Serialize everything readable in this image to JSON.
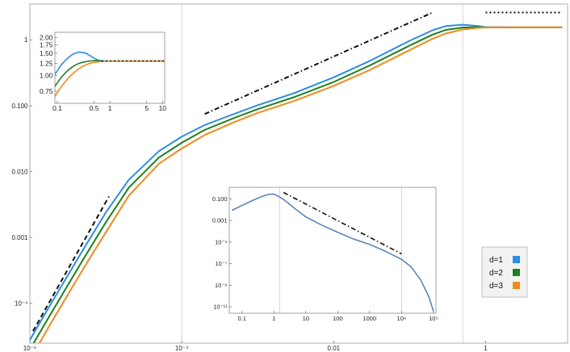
{
  "chart_data": [
    {
      "id": "main",
      "type": "line",
      "title": "",
      "xlabel": "",
      "ylabel": "",
      "x_scale": "log",
      "y_scale": "log",
      "xlim": [
        1e-06,
        12
      ],
      "ylim": [
        2.5e-05,
        3.5
      ],
      "x_ticks": [
        {
          "value": 1e-06,
          "label": "10⁻⁶"
        },
        {
          "value": 0.0001,
          "label": "10⁻⁴"
        },
        {
          "value": 0.01,
          "label": "0.01"
        },
        {
          "value": 1,
          "label": "1"
        }
      ],
      "y_ticks": [
        {
          "value": 0.0001,
          "label": "10⁻⁴"
        },
        {
          "value": 0.001,
          "label": "0.001"
        },
        {
          "value": 0.01,
          "label": "0.010"
        },
        {
          "value": 0.1,
          "label": "0.100"
        },
        {
          "value": 1,
          "label": "1"
        }
      ],
      "vertical_gridlines": [
        0.0001,
        0.5
      ],
      "series": [
        {
          "name": "d=1",
          "color": "#2b8de6",
          "x": [
            1e-06,
            2e-06,
            5e-06,
            1e-05,
            2e-05,
            5e-05,
            0.0001,
            0.0002,
            0.0005,
            0.001,
            0.003,
            0.01,
            0.03,
            0.1,
            0.2,
            0.3,
            0.5,
            0.8,
            1,
            2,
            5,
            10
          ],
          "y": [
            2.8e-05,
            0.00011,
            0.00065,
            0.0024,
            0.0075,
            0.0205,
            0.034,
            0.051,
            0.076,
            0.102,
            0.155,
            0.27,
            0.48,
            0.97,
            1.4,
            1.62,
            1.7,
            1.62,
            1.56,
            1.55,
            1.55,
            1.55
          ]
        },
        {
          "name": "d=2",
          "color": "#1e7f1e",
          "x": [
            1e-06,
            2e-06,
            5e-06,
            1e-05,
            2e-05,
            5e-05,
            0.0001,
            0.0002,
            0.0005,
            0.001,
            0.003,
            0.01,
            0.03,
            0.1,
            0.2,
            0.3,
            0.5,
            0.8,
            1,
            2,
            5,
            10
          ],
          "y": [
            2e-05,
            7.8e-05,
            0.00046,
            0.0017,
            0.0057,
            0.0164,
            0.0275,
            0.043,
            0.066,
            0.089,
            0.135,
            0.23,
            0.41,
            0.82,
            1.2,
            1.42,
            1.54,
            1.56,
            1.55,
            1.55,
            1.55,
            1.55
          ]
        },
        {
          "name": "d=3",
          "color": "#f08a1c",
          "x": [
            1e-06,
            2e-06,
            5e-06,
            1e-05,
            2e-05,
            5e-05,
            0.0001,
            0.0002,
            0.0005,
            0.001,
            0.003,
            0.01,
            0.03,
            0.1,
            0.2,
            0.3,
            0.5,
            0.8,
            1,
            2,
            5,
            10
          ],
          "y": [
            1.4e-05,
            5.6e-05,
            0.00033,
            0.0012,
            0.0043,
            0.0132,
            0.0225,
            0.036,
            0.057,
            0.078,
            0.118,
            0.2,
            0.35,
            0.7,
            1.04,
            1.25,
            1.44,
            1.52,
            1.54,
            1.55,
            1.55,
            1.55
          ]
        }
      ],
      "reference_lines": [
        {
          "style": "dashed",
          "x": [
            1.1e-06,
            1.1e-05
          ],
          "y": [
            3.8e-05,
            0.0042
          ]
        },
        {
          "style": "dashdot",
          "x": [
            0.0002,
            0.2
          ],
          "y": [
            0.075,
            2.6
          ]
        },
        {
          "style": "dotted",
          "x": [
            1,
            10
          ],
          "y": [
            2.6,
            2.6
          ]
        }
      ],
      "legend": {
        "position": "right",
        "entries": [
          "d=1",
          "d=2",
          "d=3"
        ]
      }
    },
    {
      "id": "inset-top-left",
      "type": "line",
      "x_scale": "log",
      "y_scale": "log",
      "xlim": [
        0.09,
        11
      ],
      "ylim": [
        0.6,
        2.2
      ],
      "x_ticks": [
        {
          "value": 0.1,
          "label": "0.1"
        },
        {
          "value": 0.5,
          "label": "0.5"
        },
        {
          "value": 1,
          "label": "1"
        },
        {
          "value": 5,
          "label": "5"
        },
        {
          "value": 10,
          "label": "10"
        }
      ],
      "y_ticks": [
        {
          "value": 0.75,
          "label": "0.75"
        },
        {
          "value": 1.0,
          "label": "1.00"
        },
        {
          "value": 1.25,
          "label": "1.25"
        },
        {
          "value": 1.5,
          "label": "1.50"
        },
        {
          "value": 1.75,
          "label": "1.75"
        },
        {
          "value": 2.0,
          "label": "2.00"
        }
      ],
      "series": [
        {
          "name": "d=1",
          "color": "#2b8de6",
          "x": [
            0.09,
            0.12,
            0.16,
            0.2,
            0.25,
            0.3,
            0.35,
            0.4,
            0.5,
            0.6,
            0.8,
            1,
            2,
            5,
            11
          ],
          "y": [
            1.02,
            1.22,
            1.38,
            1.48,
            1.53,
            1.52,
            1.5,
            1.45,
            1.37,
            1.32,
            1.3,
            1.3,
            1.3,
            1.3,
            1.3
          ]
        },
        {
          "name": "d=2",
          "color": "#1e7f1e",
          "x": [
            0.09,
            0.12,
            0.16,
            0.2,
            0.25,
            0.3,
            0.4,
            0.5,
            0.7,
            1,
            2,
            5,
            11
          ],
          "y": [
            0.82,
            0.97,
            1.1,
            1.18,
            1.24,
            1.27,
            1.3,
            1.31,
            1.3,
            1.3,
            1.3,
            1.3,
            1.3
          ]
        },
        {
          "name": "d=3",
          "color": "#f08a1c",
          "x": [
            0.09,
            0.12,
            0.16,
            0.2,
            0.25,
            0.3,
            0.4,
            0.5,
            0.7,
            1,
            2,
            5,
            11
          ],
          "y": [
            0.68,
            0.82,
            0.95,
            1.04,
            1.12,
            1.18,
            1.24,
            1.27,
            1.29,
            1.3,
            1.3,
            1.3,
            1.3
          ]
        }
      ],
      "reference_lines": [
        {
          "style": "dotted",
          "x": [
            0.7,
            11
          ],
          "y": [
            1.3,
            1.3
          ]
        }
      ]
    },
    {
      "id": "inset-bottom",
      "type": "line",
      "x_scale": "log",
      "y_scale": "log",
      "xlim": [
        0.04,
        120000.0
      ],
      "ylim": [
        2.5e-12,
        1.2
      ],
      "x_ticks": [
        {
          "value": 0.1,
          "label": "0.1"
        },
        {
          "value": 1,
          "label": "1"
        },
        {
          "value": 10,
          "label": "10"
        },
        {
          "value": 100,
          "label": "100"
        },
        {
          "value": 1000,
          "label": "1000"
        },
        {
          "value": 10000.0,
          "label": "10⁴"
        },
        {
          "value": 100000.0,
          "label": "10⁵"
        }
      ],
      "y_ticks": [
        {
          "value": 1e-11,
          "label": "10⁻¹¹"
        },
        {
          "value": 1e-09,
          "label": "10⁻⁹"
        },
        {
          "value": 1e-07,
          "label": "10⁻⁷"
        },
        {
          "value": 1e-05,
          "label": "10⁻⁵"
        },
        {
          "value": 0.001,
          "label": "0.001"
        },
        {
          "value": 0.1,
          "label": "0.100"
        }
      ],
      "vertical_gridlines": [
        1.5,
        10000.0
      ],
      "series": [
        {
          "name": "spectrum",
          "color": "#5b86b8",
          "x": [
            0.05,
            0.1,
            0.2,
            0.4,
            0.7,
            1,
            1.3,
            2,
            3,
            5,
            10,
            30,
            100,
            300,
            1000,
            3000,
            10000.0,
            20000.0,
            40000.0,
            70000.0,
            100000.0
          ],
          "y": [
            0.009,
            0.025,
            0.065,
            0.16,
            0.27,
            0.28,
            0.2,
            0.09,
            0.035,
            0.01,
            0.0022,
            0.0004,
            8e-05,
            2e-05,
            6e-06,
            1.5e-06,
            2.5e-07,
            5e-08,
            3e-09,
            1e-10,
            4e-12
          ]
        }
      ],
      "reference_lines": [
        {
          "style": "dashdot",
          "x": [
            2,
            10000.0
          ],
          "y": [
            0.4,
            8e-07
          ]
        }
      ]
    }
  ]
}
